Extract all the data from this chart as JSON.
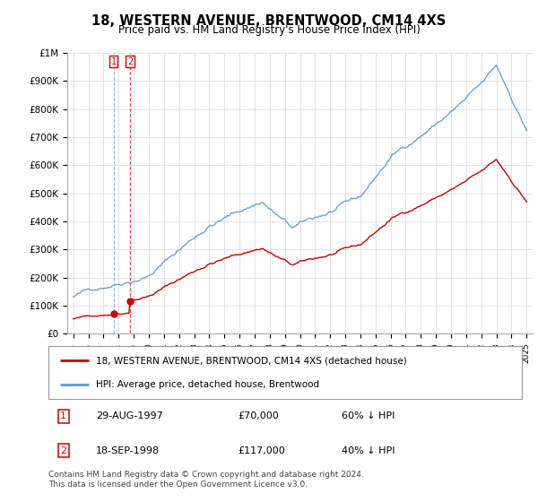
{
  "title": "18, WESTERN AVENUE, BRENTWOOD, CM14 4XS",
  "subtitle": "Price paid vs. HM Land Registry's House Price Index (HPI)",
  "legend_line1": "18, WESTERN AVENUE, BRENTWOOD, CM14 4XS (detached house)",
  "legend_line2": "HPI: Average price, detached house, Brentwood",
  "transaction1_date": "29-AUG-1997",
  "transaction1_price": "£70,000",
  "transaction1_hpi": "60% ↓ HPI",
  "transaction2_date": "18-SEP-1998",
  "transaction2_price": "£117,000",
  "transaction2_hpi": "40% ↓ HPI",
  "footnote": "Contains HM Land Registry data © Crown copyright and database right 2024.\nThis data is licensed under the Open Government Licence v3.0.",
  "hpi_color": "#5b9bd5",
  "price_color": "#cc0000",
  "marker_color": "#cc0000",
  "vline1_color": "#5b9bd5",
  "vline2_color": "#cc0000",
  "ylim_max": 1000000,
  "ylim_min": 0,
  "year_start": 1995,
  "year_end": 2025
}
